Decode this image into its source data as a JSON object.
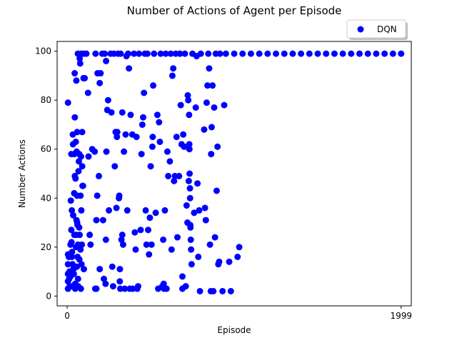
{
  "chart_data": {
    "type": "scatter",
    "title": "Number of Actions of Agent per Episode",
    "xlabel": "Episode",
    "ylabel": "Number Actions",
    "xlim": [
      -60,
      2060
    ],
    "ylim": [
      -4,
      104
    ],
    "x_ticks": [
      0,
      1999
    ],
    "x_tick_labels": [
      "0",
      "1999"
    ],
    "y_ticks": [
      0,
      20,
      40,
      60,
      80,
      100
    ],
    "y_tick_labels": [
      "0",
      "20",
      "40",
      "60",
      "80",
      "100"
    ],
    "grid": false,
    "legend": {
      "placement": "top-right",
      "entries": [
        "DQN"
      ]
    },
    "colors": {
      "series": "#0000ff"
    },
    "series": [
      {
        "name": "DQN",
        "points": [
          [
            5,
            79
          ],
          [
            5,
            17
          ],
          [
            5,
            13
          ],
          [
            5,
            9
          ],
          [
            5,
            6
          ],
          [
            5,
            3
          ],
          [
            10,
            16
          ],
          [
            12,
            7
          ],
          [
            14,
            10
          ],
          [
            15,
            4
          ],
          [
            20,
            21
          ],
          [
            20,
            8
          ],
          [
            22,
            39
          ],
          [
            25,
            58
          ],
          [
            25,
            27
          ],
          [
            26,
            22
          ],
          [
            28,
            35
          ],
          [
            28,
            16
          ],
          [
            29,
            18
          ],
          [
            30,
            4
          ],
          [
            32,
            13
          ],
          [
            34,
            66
          ],
          [
            35,
            62
          ],
          [
            36,
            33
          ],
          [
            38,
            11
          ],
          [
            40,
            9
          ],
          [
            42,
            58
          ],
          [
            42,
            42
          ],
          [
            43,
            25
          ],
          [
            45,
            91
          ],
          [
            46,
            73
          ],
          [
            46,
            49
          ],
          [
            48,
            5
          ],
          [
            48,
            3
          ],
          [
            50,
            48
          ],
          [
            52,
            63
          ],
          [
            53,
            20
          ],
          [
            55,
            88
          ],
          [
            55,
            25
          ],
          [
            56,
            31
          ],
          [
            57,
            59
          ],
          [
            58,
            12
          ],
          [
            60,
            67
          ],
          [
            60,
            41
          ],
          [
            60,
            30
          ],
          [
            62,
            29
          ],
          [
            62,
            16
          ],
          [
            64,
            99
          ],
          [
            65,
            21
          ],
          [
            65,
            7
          ],
          [
            66,
            4
          ],
          [
            68,
            51
          ],
          [
            70,
            55
          ],
          [
            72,
            58
          ],
          [
            72,
            28
          ],
          [
            73,
            15
          ],
          [
            75,
            97
          ],
          [
            75,
            25
          ],
          [
            78,
            95
          ],
          [
            80,
            41
          ],
          [
            80,
            19
          ],
          [
            82,
            3
          ],
          [
            83,
            57
          ],
          [
            85,
            99
          ],
          [
            85,
            35
          ],
          [
            86,
            13
          ],
          [
            88,
            21
          ],
          [
            90,
            67
          ],
          [
            90,
            53
          ],
          [
            92,
            45
          ],
          [
            95,
            45
          ],
          [
            98,
            89
          ],
          [
            100,
            99
          ],
          [
            100,
            11
          ],
          [
            105,
            89
          ],
          [
            115,
            99
          ],
          [
            125,
            83
          ],
          [
            128,
            57
          ],
          [
            135,
            25
          ],
          [
            140,
            21
          ],
          [
            150,
            60
          ],
          [
            165,
            59
          ],
          [
            168,
            3
          ],
          [
            170,
            99
          ],
          [
            175,
            31
          ],
          [
            175,
            3
          ],
          [
            180,
            41
          ],
          [
            182,
            91
          ],
          [
            190,
            49
          ],
          [
            195,
            87
          ],
          [
            195,
            11
          ],
          [
            200,
            91
          ],
          [
            210,
            99
          ],
          [
            215,
            31
          ],
          [
            220,
            7
          ],
          [
            225,
            99
          ],
          [
            230,
            5
          ],
          [
            232,
            23
          ],
          [
            233,
            96
          ],
          [
            235,
            59
          ],
          [
            240,
            76
          ],
          [
            245,
            80
          ],
          [
            250,
            35
          ],
          [
            260,
            99
          ],
          [
            265,
            75
          ],
          [
            270,
            12
          ],
          [
            275,
            4
          ],
          [
            280,
            99
          ],
          [
            285,
            53
          ],
          [
            290,
            67
          ],
          [
            295,
            36
          ],
          [
            298,
            65
          ],
          [
            300,
            67
          ],
          [
            305,
            99
          ],
          [
            310,
            40
          ],
          [
            312,
            41
          ],
          [
            315,
            6
          ],
          [
            316,
            11
          ],
          [
            318,
            3
          ],
          [
            320,
            99
          ],
          [
            325,
            23
          ],
          [
            330,
            25
          ],
          [
            330,
            75
          ],
          [
            335,
            21
          ],
          [
            340,
            59
          ],
          [
            345,
            3
          ],
          [
            350,
            66
          ],
          [
            355,
            98
          ],
          [
            360,
            35
          ],
          [
            365,
            99
          ],
          [
            370,
            93
          ],
          [
            375,
            3
          ],
          [
            380,
            74
          ],
          [
            390,
            66
          ],
          [
            393,
            3
          ],
          [
            400,
            99
          ],
          [
            405,
            26
          ],
          [
            410,
            19
          ],
          [
            415,
            65
          ],
          [
            420,
            3
          ],
          [
            425,
            4
          ],
          [
            430,
            99
          ],
          [
            440,
            27
          ],
          [
            445,
            58
          ],
          [
            450,
            70
          ],
          [
            455,
            73
          ],
          [
            460,
            83
          ],
          [
            465,
            99
          ],
          [
            470,
            35
          ],
          [
            475,
            21
          ],
          [
            480,
            99
          ],
          [
            485,
            27
          ],
          [
            490,
            17
          ],
          [
            495,
            32
          ],
          [
            500,
            53
          ],
          [
            505,
            21
          ],
          [
            510,
            61
          ],
          [
            512,
            65
          ],
          [
            515,
            86
          ],
          [
            520,
            99
          ],
          [
            530,
            34
          ],
          [
            540,
            74
          ],
          [
            545,
            3
          ],
          [
            550,
            71
          ],
          [
            555,
            63
          ],
          [
            560,
            99
          ],
          [
            570,
            4
          ],
          [
            575,
            23
          ],
          [
            578,
            5
          ],
          [
            580,
            3
          ],
          [
            585,
            35
          ],
          [
            590,
            99
          ],
          [
            595,
            3
          ],
          [
            600,
            59
          ],
          [
            605,
            49
          ],
          [
            615,
            55
          ],
          [
            620,
            99
          ],
          [
            625,
            19
          ],
          [
            630,
            90
          ],
          [
            635,
            93
          ],
          [
            640,
            47
          ],
          [
            645,
            49
          ],
          [
            650,
            99
          ],
          [
            655,
            65
          ],
          [
            660,
            24
          ],
          [
            670,
            49
          ],
          [
            675,
            99
          ],
          [
            680,
            78
          ],
          [
            685,
            62
          ],
          [
            690,
            8
          ],
          [
            690,
            3
          ],
          [
            695,
            66
          ],
          [
            700,
            61
          ],
          [
            705,
            99
          ],
          [
            710,
            4
          ],
          [
            715,
            37
          ],
          [
            718,
            61
          ],
          [
            720,
            30
          ],
          [
            722,
            82
          ],
          [
            725,
            80
          ],
          [
            728,
            47
          ],
          [
            730,
            74
          ],
          [
            731,
            62
          ],
          [
            732,
            60
          ],
          [
            733,
            50
          ],
          [
            735,
            44
          ],
          [
            736,
            40
          ],
          [
            737,
            29
          ],
          [
            738,
            28
          ],
          [
            740,
            23
          ],
          [
            742,
            19
          ],
          [
            745,
            13
          ],
          [
            750,
            99
          ],
          [
            760,
            34
          ],
          [
            770,
            77
          ],
          [
            775,
            98
          ],
          [
            780,
            46
          ],
          [
            785,
            16
          ],
          [
            790,
            35
          ],
          [
            795,
            2
          ],
          [
            800,
            99
          ],
          [
            820,
            68
          ],
          [
            825,
            36
          ],
          [
            830,
            31
          ],
          [
            835,
            79
          ],
          [
            840,
            86
          ],
          [
            845,
            99
          ],
          [
            850,
            93
          ],
          [
            855,
            21
          ],
          [
            860,
            2
          ],
          [
            862,
            58
          ],
          [
            865,
            69
          ],
          [
            870,
            86
          ],
          [
            875,
            2
          ],
          [
            880,
            77
          ],
          [
            885,
            24
          ],
          [
            890,
            99
          ],
          [
            895,
            43
          ],
          [
            900,
            61
          ],
          [
            905,
            13
          ],
          [
            910,
            14
          ],
          [
            915,
            99
          ],
          [
            930,
            2
          ],
          [
            940,
            78
          ],
          [
            950,
            99
          ],
          [
            970,
            14
          ],
          [
            980,
            2
          ],
          [
            1000,
            99
          ],
          [
            1020,
            16
          ],
          [
            1030,
            20
          ],
          [
            1050,
            99
          ],
          [
            1100,
            99
          ],
          [
            1150,
            99
          ],
          [
            1200,
            99
          ],
          [
            1250,
            99
          ],
          [
            1300,
            99
          ],
          [
            1350,
            99
          ],
          [
            1400,
            99
          ],
          [
            1450,
            99
          ],
          [
            1500,
            99
          ],
          [
            1550,
            99
          ],
          [
            1600,
            99
          ],
          [
            1650,
            99
          ],
          [
            1700,
            99
          ],
          [
            1750,
            99
          ],
          [
            1800,
            99
          ],
          [
            1850,
            99
          ],
          [
            1900,
            99
          ],
          [
            1950,
            99
          ],
          [
            1999,
            99
          ]
        ]
      }
    ]
  }
}
